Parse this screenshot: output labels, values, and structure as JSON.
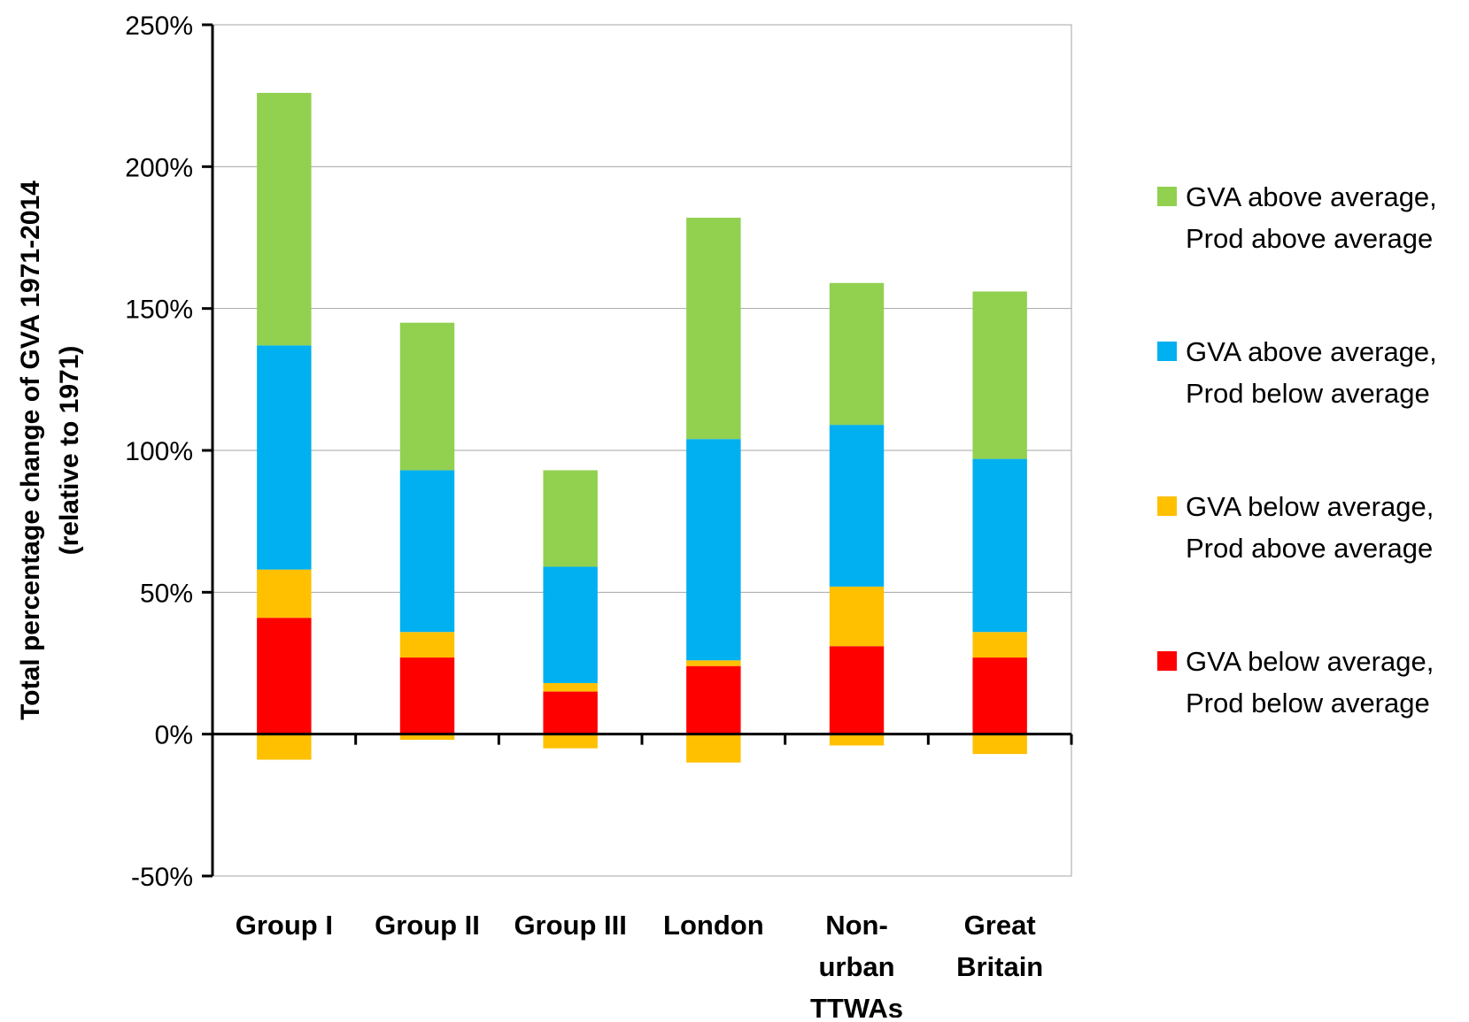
{
  "chart_data": {
    "type": "bar",
    "stacked": true,
    "title": "",
    "xlabel": "",
    "ylabel_lines": [
      "Total percentage change of GVA 1971-2014",
      "(relative to 1971)"
    ],
    "ylim": [
      -50,
      250
    ],
    "yticks": [
      -50,
      0,
      50,
      100,
      150,
      200,
      250
    ],
    "ytick_labels": [
      "-50%",
      "0%",
      "50%",
      "100%",
      "150%",
      "200%",
      "250%"
    ],
    "grid": true,
    "legend_position": "right",
    "categories": [
      "Group I",
      "Group II",
      "Group III",
      "London",
      "Non-urban TTWAs",
      "Great Britain"
    ],
    "category_label_lines": [
      [
        "Group I"
      ],
      [
        "Group II"
      ],
      [
        "Group III"
      ],
      [
        "London"
      ],
      [
        "Non-",
        "urban",
        "TTWAs"
      ],
      [
        "Great",
        "Britain"
      ]
    ],
    "series": [
      {
        "name": "GVA below average, Prod below average",
        "legend_lines": [
          "GVA below average,",
          "Prod below average"
        ],
        "color": "#ff0000",
        "values": [
          41,
          27,
          15,
          24,
          31,
          27
        ]
      },
      {
        "name": "GVA below average, Prod above average",
        "legend_lines": [
          "GVA below average,",
          "Prod above average"
        ],
        "color": "#ffc000",
        "values": [
          17,
          9,
          3,
          2,
          21,
          9
        ],
        "negative_values": [
          -9,
          -2,
          -5,
          -10,
          -4,
          -7
        ]
      },
      {
        "name": "GVA above average, Prod below average",
        "legend_lines": [
          "GVA above average,",
          "Prod below average"
        ],
        "color": "#00b0f0",
        "values": [
          79,
          57,
          41,
          78,
          57,
          61
        ]
      },
      {
        "name": "GVA above average, Prod above average",
        "legend_lines": [
          "GVA above average,",
          "Prod above average"
        ],
        "color": "#92d050",
        "values": [
          89,
          52,
          34,
          78,
          50,
          59
        ]
      }
    ],
    "legend_order": [
      3,
      2,
      1,
      0
    ]
  }
}
